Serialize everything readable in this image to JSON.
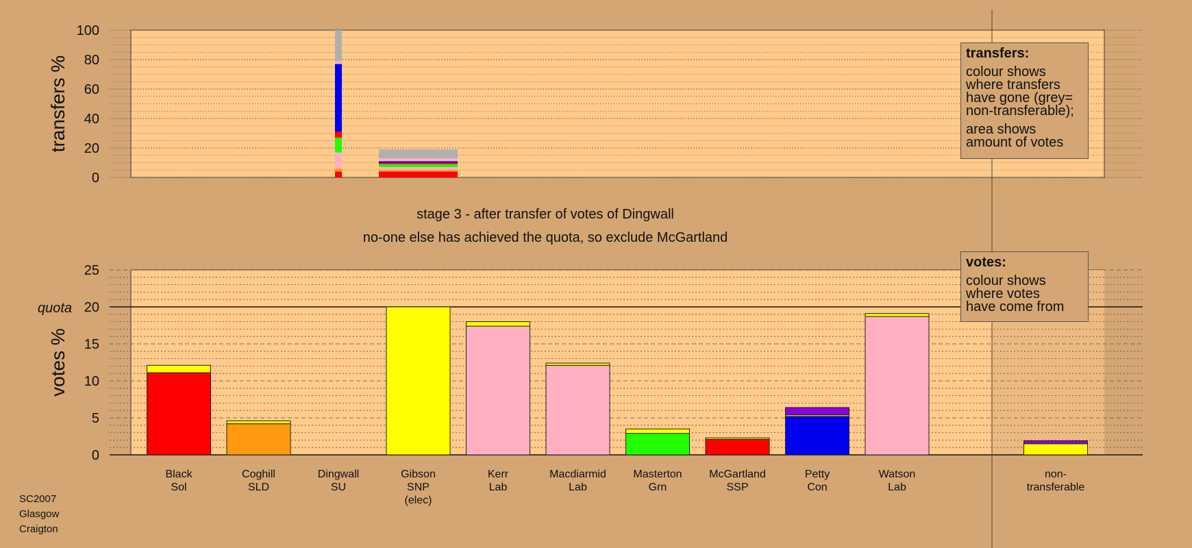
{
  "chart_data": [
    {
      "type": "bar",
      "stacked": true,
      "ylabel": "transfers %",
      "ylim": [
        0,
        100
      ],
      "yticks": [
        0,
        20,
        40,
        60,
        80,
        100
      ],
      "bars": [
        {
          "segments": [
            {
              "color": "#ff0000",
              "value": 4
            },
            {
              "color": "#ff9a10",
              "value": 2
            },
            {
              "color": "#ffb0c0",
              "value": 11
            },
            {
              "color": "#22ff00",
              "value": 10
            },
            {
              "color": "#ff0000",
              "value": 4
            },
            {
              "color": "#0000ee",
              "value": 46
            },
            {
              "color": "#ffb0c0",
              "value": 2
            },
            {
              "color": "#b0b0b0",
              "value": 21
            }
          ]
        },
        {
          "segments": [
            {
              "color": "#ff0000",
              "value": 4
            },
            {
              "color": "#ff9a10",
              "value": 1
            },
            {
              "color": "#ffb0c0",
              "value": 2
            },
            {
              "color": "#22ff00",
              "value": 2
            },
            {
              "color": "#ff0000",
              "value": 1
            },
            {
              "color": "#0000ee",
              "value": 1
            },
            {
              "color": "#ffb0c0",
              "value": 2
            },
            {
              "color": "#b0b0b0",
              "value": 6
            }
          ]
        }
      ]
    },
    {
      "type": "bar",
      "stacked": true,
      "ylabel": "votes %",
      "ylim": [
        0,
        25
      ],
      "yticks": [
        0,
        5,
        10,
        15,
        20,
        25
      ],
      "quota": 20,
      "quota_label": "quota",
      "categories": [
        {
          "lines": [
            "Black",
            "Sol"
          ],
          "segments": [
            {
              "color": "#ff0000",
              "value": 11.1
            },
            {
              "color": "#ffff00",
              "value": 1.0
            }
          ]
        },
        {
          "lines": [
            "Coghill",
            "SLD"
          ],
          "segments": [
            {
              "color": "#ff9a10",
              "value": 4.2
            },
            {
              "color": "#ffff00",
              "value": 0.4
            }
          ]
        },
        {
          "lines": [
            "Dingwall",
            "SU"
          ],
          "segments": []
        },
        {
          "lines": [
            "Gibson",
            "SNP",
            "(elec)"
          ],
          "segments": [
            {
              "color": "#ffff00",
              "value": 20.0
            }
          ]
        },
        {
          "lines": [
            "Kerr",
            "Lab"
          ],
          "segments": [
            {
              "color": "#ffb0c0",
              "value": 17.4
            },
            {
              "color": "#ffff00",
              "value": 0.6
            }
          ]
        },
        {
          "lines": [
            "Macdiarmid",
            "Lab"
          ],
          "segments": [
            {
              "color": "#ffb0c0",
              "value": 12.1
            },
            {
              "color": "#ffff00",
              "value": 0.3
            }
          ]
        },
        {
          "lines": [
            "Masterton",
            "Grn"
          ],
          "segments": [
            {
              "color": "#22ff00",
              "value": 2.9
            },
            {
              "color": "#ffff00",
              "value": 0.6
            }
          ]
        },
        {
          "lines": [
            "McGartland",
            "SSP"
          ],
          "segments": [
            {
              "color": "#ff0000",
              "value": 2.1
            },
            {
              "color": "#ffff00",
              "value": 0.2
            }
          ]
        },
        {
          "lines": [
            "Petty",
            "Con"
          ],
          "segments": [
            {
              "color": "#0000ee",
              "value": 5.2
            },
            {
              "color": "#ffff00",
              "value": 0.2
            },
            {
              "color": "#8b00e0",
              "value": 1.0
            }
          ]
        },
        {
          "lines": [
            "Watson",
            "Lab"
          ],
          "segments": [
            {
              "color": "#ffb0c0",
              "value": 18.7
            },
            {
              "color": "#ffff00",
              "value": 0.4
            }
          ]
        },
        {
          "lines": [
            "non-",
            "transferable"
          ],
          "segments": [
            {
              "color": "#ffff00",
              "value": 1.5
            },
            {
              "color": "#8b00e0",
              "value": 0.4
            }
          ],
          "nontransferable": true
        }
      ]
    }
  ],
  "stage_text": "stage 3 - after transfer of votes of Dingwall",
  "action_text": "no-one else has achieved the quota, so exclude McGartland",
  "transfers_note": {
    "heading": "transfers:",
    "line1": "colour shows",
    "line2": "where transfers",
    "line3": "have gone (grey=",
    "line4": "non-transferable);",
    "line5": "area shows",
    "line6": "amount of votes"
  },
  "votes_note": {
    "heading": "votes:",
    "line1": "colour shows",
    "line2": "where votes",
    "line3": "have come from"
  },
  "meta": {
    "election": "SC2007",
    "council": "Glasgow",
    "ward": "Craigton"
  },
  "colors": {
    "background": "#d4a673",
    "plot_background": "#ffca8a"
  }
}
